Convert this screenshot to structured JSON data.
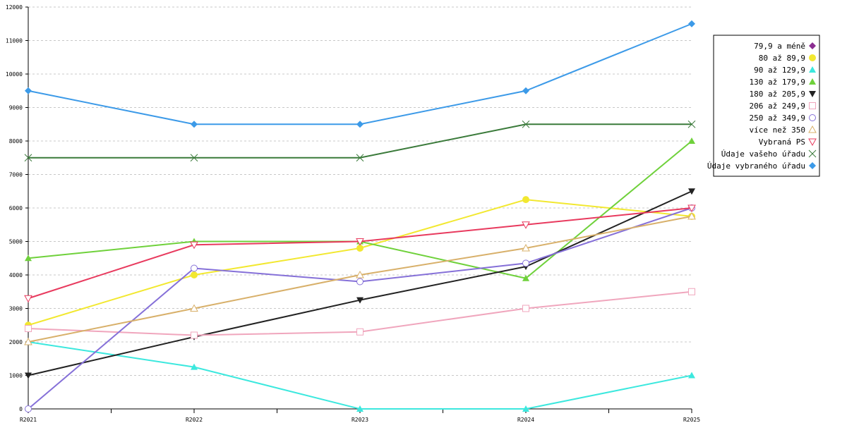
{
  "chart_data": {
    "type": "line",
    "categories": [
      "R2021",
      "R2022",
      "R2023",
      "R2024",
      "R2025"
    ],
    "ylim": [
      0,
      12000
    ],
    "yticks": [
      0,
      1000,
      2000,
      3000,
      4000,
      5000,
      6000,
      7000,
      8000,
      9000,
      10000,
      11000,
      12000
    ],
    "grid": true,
    "legend_position": "right",
    "series": [
      {
        "name": "79,9 a méně",
        "color": "#8b2d91",
        "marker": "diamond",
        "values": [
          null,
          null,
          null,
          null,
          null
        ]
      },
      {
        "name": "80 až 89,9",
        "color": "#f2e830",
        "marker": "circle",
        "values": [
          2500,
          4000,
          4800,
          6250,
          5750
        ]
      },
      {
        "name": "90 až 129,9",
        "color": "#3ce8de",
        "marker": "triangle",
        "values": [
          2000,
          1250,
          0,
          0,
          1000
        ]
      },
      {
        "name": "130 až 179,9",
        "color": "#6fd13b",
        "marker": "triangle",
        "values": [
          4500,
          5000,
          5000,
          3900,
          8000
        ]
      },
      {
        "name": "180 až 205,9",
        "color": "#222222",
        "marker": "triangle-down",
        "values": [
          1000,
          2150,
          3250,
          4250,
          6500
        ]
      },
      {
        "name": "206 až 249,9",
        "color": "#f0a6bd",
        "marker": "square-open",
        "values": [
          2400,
          2200,
          2300,
          3000,
          3500
        ]
      },
      {
        "name": "250 až 349,9",
        "color": "#8570d8",
        "marker": "circle-open",
        "values": [
          0,
          4200,
          3800,
          4350,
          6000
        ]
      },
      {
        "name": "více než 350",
        "color": "#d8b06a",
        "marker": "triangle-open",
        "values": [
          2000,
          3000,
          4000,
          4800,
          5750
        ]
      },
      {
        "name": "Vybraná PS",
        "color": "#e83a5e",
        "marker": "triangle-down-open",
        "values": [
          3300,
          4900,
          5000,
          5500,
          6000
        ]
      },
      {
        "name": "Údaje vašeho úřadu",
        "color": "#3a7a3a",
        "marker": "x",
        "values": [
          7500,
          7500,
          7500,
          8500,
          8500
        ]
      },
      {
        "name": "Údaje vybraného úřadu",
        "color": "#3c9ae8",
        "marker": "diamond",
        "values": [
          9500,
          8500,
          8500,
          9500,
          11500
        ]
      }
    ]
  }
}
